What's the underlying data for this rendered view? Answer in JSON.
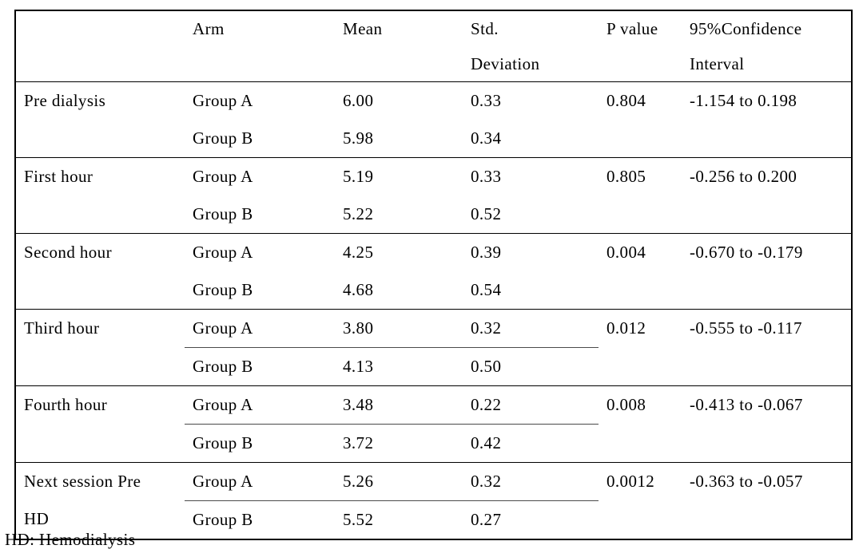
{
  "document": {
    "footnote": "HD: Hemodialysis"
  },
  "table": {
    "header": {
      "label": "",
      "arm": "Arm",
      "mean": "Mean",
      "sd_line1": "Std.",
      "sd_line2": "Deviation",
      "p": "P value",
      "ci_line1": "95%Confidence",
      "ci_line2": "Interval"
    },
    "rows": [
      {
        "label_line1": "Pre dialysis",
        "groups": [
          {
            "arm": "Group A",
            "mean": "6.00",
            "sd": "0.33"
          },
          {
            "arm": "Group B",
            "mean": "5.98",
            "sd": "0.34"
          }
        ],
        "p_value": "0.804",
        "ci": "-1.154 to 0.198"
      },
      {
        "label_line1": "First hour",
        "groups": [
          {
            "arm": "Group A",
            "mean": "5.19",
            "sd": "0.33"
          },
          {
            "arm": "Group B",
            "mean": "5.22",
            "sd": "0.52"
          }
        ],
        "p_value": "0.805",
        "ci": "-0.256 to 0.200"
      },
      {
        "label_line1": "Second hour",
        "groups": [
          {
            "arm": "Group A",
            "mean": "4.25",
            "sd": "0.39"
          },
          {
            "arm": "Group B",
            "mean": "4.68",
            "sd": "0.54"
          }
        ],
        "p_value": "0.004",
        "ci": "-0.670 to -0.179"
      },
      {
        "label_line1": "Third hour",
        "groups": [
          {
            "arm": "Group A",
            "mean": "3.80",
            "sd": "0.32"
          },
          {
            "arm": "Group B",
            "mean": "4.13",
            "sd": "0.50"
          }
        ],
        "p_value": "0.012",
        "ci": "-0.555 to -0.117"
      },
      {
        "label_line1": "Fourth hour",
        "groups": [
          {
            "arm": "Group A",
            "mean": "3.48",
            "sd": "0.22"
          },
          {
            "arm": "Group B",
            "mean": "3.72",
            "sd": "0.42"
          }
        ],
        "p_value": "0.008",
        "ci": "-0.413 to -0.067"
      },
      {
        "label_line1": "Next session Pre",
        "label_line2": "HD",
        "groups": [
          {
            "arm": "Group A",
            "mean": "5.26",
            "sd": "0.32"
          },
          {
            "arm": "Group B",
            "mean": "5.52",
            "sd": "0.27"
          }
        ],
        "p_value": "0.0012",
        "ci": "-0.363 to -0.057"
      }
    ]
  }
}
